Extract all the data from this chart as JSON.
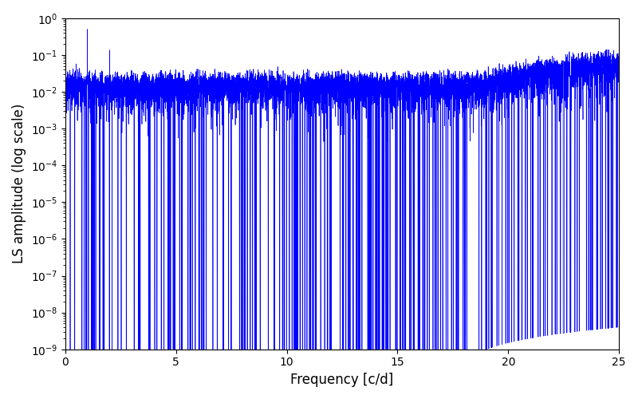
{
  "title": "",
  "xlabel": "Frequency [c/d]",
  "ylabel": "LS amplitude (log scale)",
  "xlim": [
    0,
    25
  ],
  "ylim_log": [
    1e-09,
    1.0
  ],
  "line_color": "#0000ff",
  "line_width": 0.5,
  "freq_max": 25.0,
  "n_points": 8000,
  "seed": 7,
  "background_color": "#ffffff",
  "figsize": [
    8.0,
    5.0
  ],
  "dpi": 100
}
